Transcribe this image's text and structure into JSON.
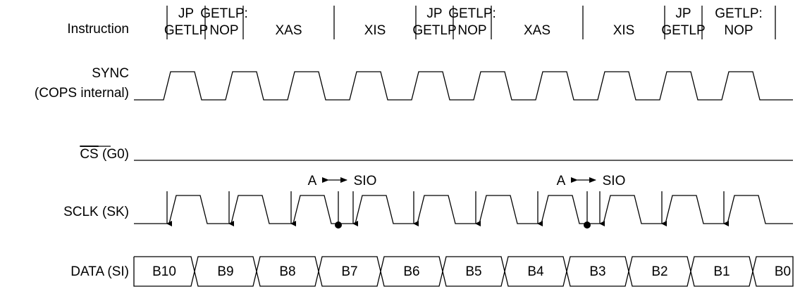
{
  "labels": {
    "instruction": "Instruction",
    "sync": [
      "SYNC",
      "(COPS internal)"
    ],
    "cs": {
      "bar": "CS",
      "rest": " (G0)"
    },
    "sclk": "SCLK (SK)",
    "data": "DATA (SI)"
  },
  "instructions": [
    [
      "JP",
      "GETLP"
    ],
    [
      "GETLP:",
      "NOP"
    ],
    [
      "XAS"
    ],
    [
      "XIS"
    ],
    [
      "JP",
      "GETLP"
    ],
    [
      "GETLP:",
      "NOP"
    ],
    [
      "XAS"
    ],
    [
      "XIS"
    ],
    [
      "JP",
      "GETLP"
    ],
    [
      "GETLP:",
      "NOP"
    ]
  ],
  "annotations": [
    {
      "left": "A",
      "right": "SIO"
    },
    {
      "left": "A",
      "right": "SIO"
    }
  ],
  "bits": [
    "B10",
    "B9",
    "B8",
    "B7",
    "B6",
    "B5",
    "B4",
    "B3",
    "B2",
    "B1",
    "B0"
  ]
}
